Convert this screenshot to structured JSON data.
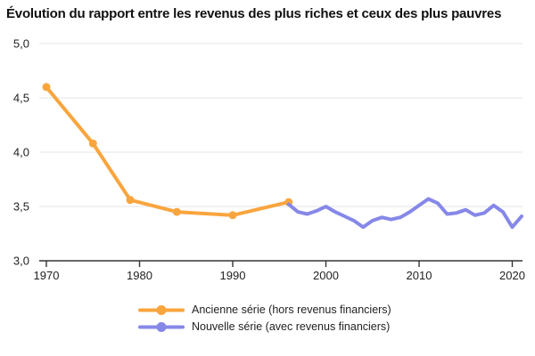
{
  "title": "Évolution du rapport entre les revenus des plus riches et ceux des plus pauvres",
  "colors": {
    "old_series": "#F9A53E",
    "new_series": "#8688E8",
    "gridline": "#e4e4e4",
    "axis": "#333333",
    "tick_label": "#222222",
    "title_text": "#111111"
  },
  "chart_data": {
    "type": "line",
    "title": "Évolution du rapport entre les revenus des plus riches et ceux des plus pauvres",
    "xlabel": "",
    "ylabel": "",
    "ylim": [
      3.0,
      5.0
    ],
    "xlim": [
      1970,
      2020
    ],
    "grid": true,
    "legend_position": "bottom",
    "y_ticks": [
      {
        "value": 3.0,
        "label": "3,0"
      },
      {
        "value": 3.5,
        "label": "3,5"
      },
      {
        "value": 4.0,
        "label": "4,0"
      },
      {
        "value": 4.5,
        "label": "4,5"
      },
      {
        "value": 5.0,
        "label": "5,0"
      }
    ],
    "x_ticks": [
      {
        "value": 1970,
        "label": "1970"
      },
      {
        "value": 1980,
        "label": "1980"
      },
      {
        "value": 1990,
        "label": "1990"
      },
      {
        "value": 2000,
        "label": "2000"
      },
      {
        "value": 2010,
        "label": "2010"
      },
      {
        "value": 2020,
        "label": "2020"
      }
    ],
    "series": [
      {
        "name": "Ancienne série (hors revenus financiers)",
        "color": "#F9A53E",
        "markers": true,
        "x": [
          1970,
          1975,
          1979,
          1984,
          1990,
          1996
        ],
        "values": [
          4.6,
          4.08,
          3.56,
          3.45,
          3.42,
          3.54
        ]
      },
      {
        "name": "Nouvelle série (avec revenus financiers)",
        "color": "#8688E8",
        "markers": false,
        "x": [
          1996,
          1997,
          1998,
          1999,
          2000,
          2001,
          2002,
          2003,
          2004,
          2005,
          2006,
          2007,
          2008,
          2009,
          2010,
          2011,
          2012,
          2013,
          2014,
          2015,
          2016,
          2017,
          2018,
          2019,
          2020,
          2021
        ],
        "values": [
          3.52,
          3.45,
          3.43,
          3.46,
          3.5,
          3.45,
          3.41,
          3.37,
          3.31,
          3.37,
          3.4,
          3.38,
          3.4,
          3.45,
          3.51,
          3.57,
          3.53,
          3.43,
          3.44,
          3.47,
          3.42,
          3.44,
          3.51,
          3.45,
          3.31,
          3.41
        ]
      }
    ]
  }
}
